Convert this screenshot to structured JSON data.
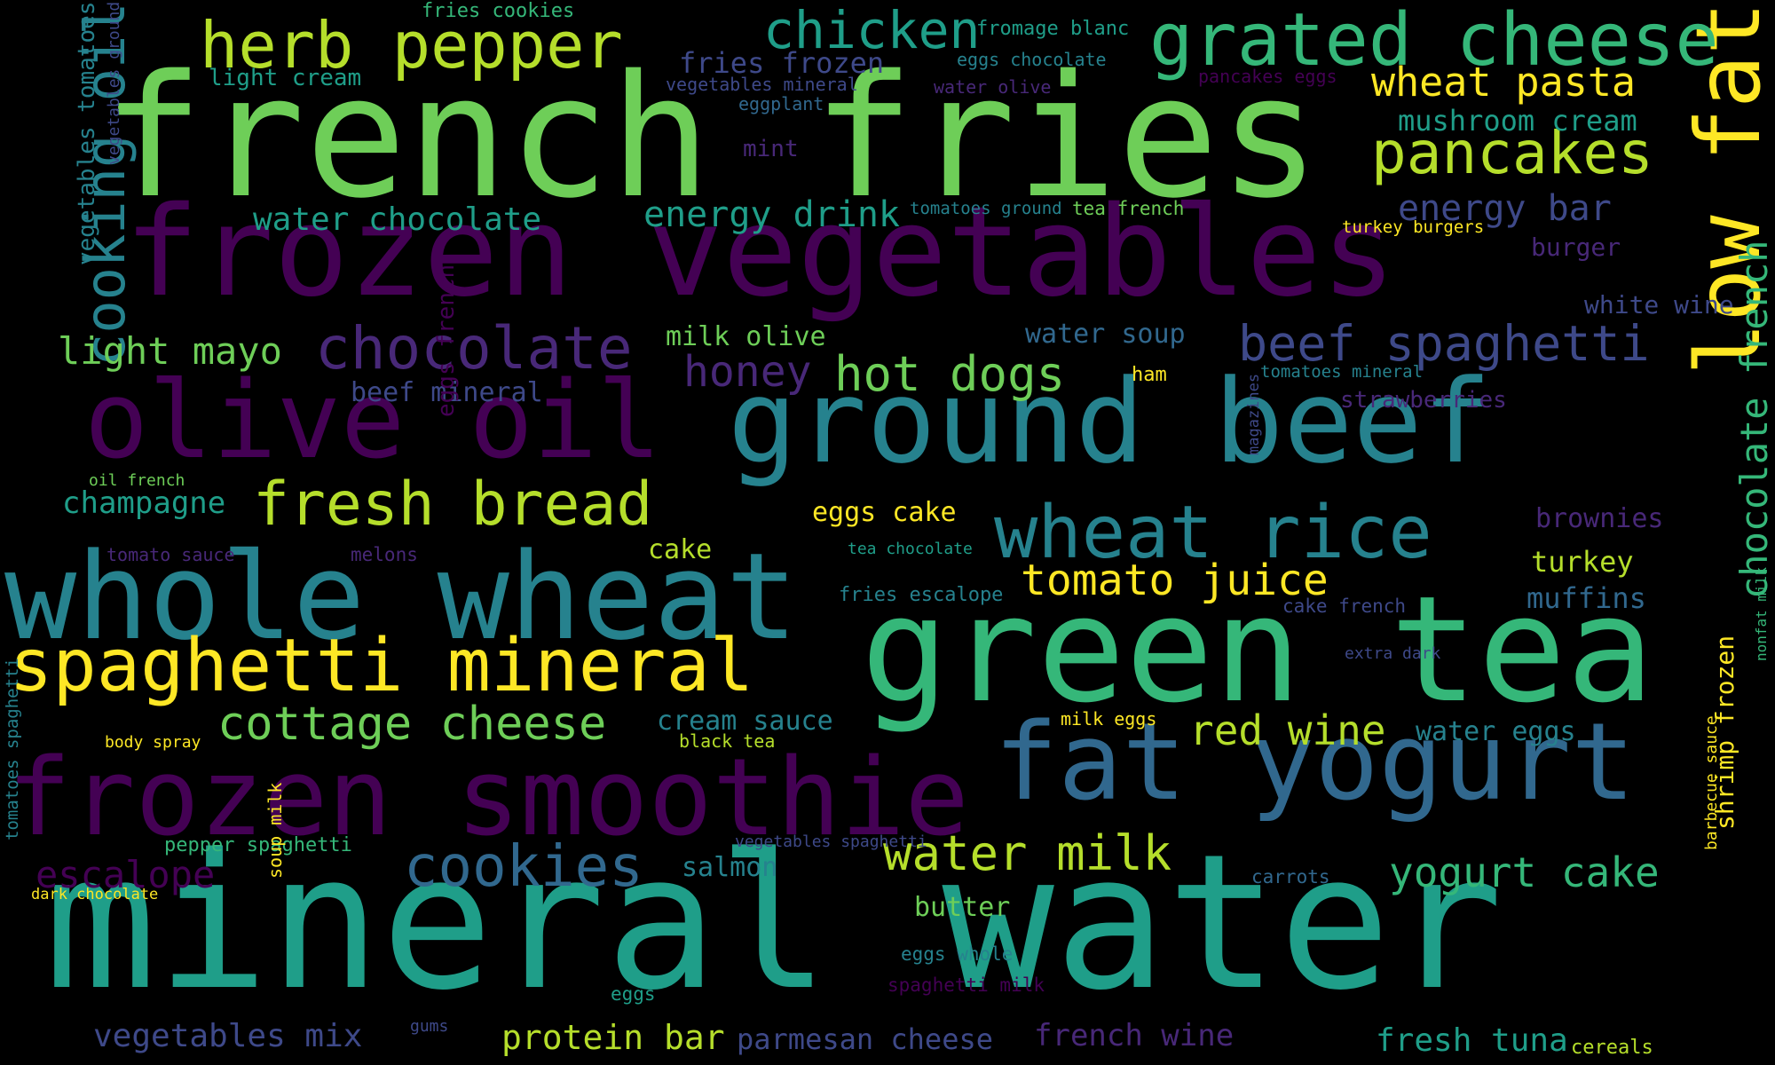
{
  "palette": {
    "background": "#000000",
    "deep_purple": "#440154",
    "indigo": "#482878",
    "violet_blue": "#3e4989",
    "slate_blue": "#31688e",
    "teal": "#26828e",
    "sea_green": "#1f9e89",
    "green_teal": "#35b779",
    "green": "#6ece58",
    "lime": "#b5de2b",
    "yellow": "#fde725"
  },
  "words": [
    {
      "text": "french fries",
      "color": "#6ece58"
    },
    {
      "text": "mineral water",
      "color": "#1f9e89"
    },
    {
      "text": "frozen vegetables",
      "color": "#440154"
    },
    {
      "text": "green tea",
      "color": "#35b779"
    },
    {
      "text": "whole wheat",
      "color": "#26828e"
    },
    {
      "text": "ground beef",
      "color": "#26828e"
    },
    {
      "text": "olive oil",
      "color": "#440154"
    },
    {
      "text": "frozen smoothie",
      "color": "#440154"
    },
    {
      "text": "fat yogurt",
      "color": "#31688e"
    },
    {
      "text": "low fat",
      "color": "#fde725"
    },
    {
      "text": "spaghetti mineral",
      "color": "#fde725"
    },
    {
      "text": "grated cheese",
      "color": "#35b779"
    },
    {
      "text": "wheat rice",
      "color": "#26828e"
    },
    {
      "text": "herb pepper",
      "color": "#b5de2b"
    },
    {
      "text": "pancakes",
      "color": "#b5de2b"
    },
    {
      "text": "cooking oil",
      "color": "#26828e"
    },
    {
      "text": "chocolate",
      "color": "#482878"
    },
    {
      "text": "fresh bread",
      "color": "#b5de2b"
    },
    {
      "text": "beef spaghetti",
      "color": "#3e4989"
    },
    {
      "text": "chicken",
      "color": "#1f9e89"
    },
    {
      "text": "hot dogs",
      "color": "#6ece58"
    },
    {
      "text": "cookies",
      "color": "#31688e"
    },
    {
      "text": "water milk",
      "color": "#b5de2b"
    },
    {
      "text": "tomato juice",
      "color": "#fde725"
    },
    {
      "text": "cottage cheese",
      "color": "#6ece58"
    },
    {
      "text": "chocolate french",
      "color": "#35b779"
    },
    {
      "text": "wheat pasta",
      "color": "#fde725"
    },
    {
      "text": "honey",
      "color": "#482878"
    },
    {
      "text": "yogurt cake",
      "color": "#35b779"
    },
    {
      "text": "red wine",
      "color": "#b5de2b"
    },
    {
      "text": "light mayo",
      "color": "#6ece58"
    },
    {
      "text": "escalope",
      "color": "#440154"
    },
    {
      "text": "energy drink",
      "color": "#1f9e89"
    },
    {
      "text": "water chocolate",
      "color": "#1f9e89"
    },
    {
      "text": "energy bar",
      "color": "#3e4989"
    },
    {
      "text": "protein bar",
      "color": "#b5de2b"
    },
    {
      "text": "vegetables mix",
      "color": "#3e4989"
    },
    {
      "text": "parmesan cheese",
      "color": "#3e4989"
    },
    {
      "text": "french wine",
      "color": "#482878"
    },
    {
      "text": "fresh tuna",
      "color": "#1f9e89"
    },
    {
      "text": "mushroom cream",
      "color": "#1f9e89"
    },
    {
      "text": "champagne",
      "color": "#1f9e89"
    },
    {
      "text": "fries frozen",
      "color": "#3e4989"
    },
    {
      "text": "shrimp frozen",
      "color": "#fde725"
    },
    {
      "text": "water soup",
      "color": "#31688e"
    },
    {
      "text": "milk olive",
      "color": "#6ece58"
    },
    {
      "text": "beef mineral",
      "color": "#3e4989"
    },
    {
      "text": "eggs cake",
      "color": "#fde725"
    },
    {
      "text": "cream sauce",
      "color": "#26828e"
    },
    {
      "text": "turkey",
      "color": "#b5de2b"
    },
    {
      "text": "muffins",
      "color": "#31688e"
    },
    {
      "text": "brownies",
      "color": "#482878"
    },
    {
      "text": "water eggs",
      "color": "#26828e"
    },
    {
      "text": "butter",
      "color": "#6ece58"
    },
    {
      "text": "salmon",
      "color": "#26828e"
    },
    {
      "text": "cake",
      "color": "#b5de2b"
    },
    {
      "text": "white wine",
      "color": "#3e4989"
    },
    {
      "text": "strawberries",
      "color": "#482878"
    },
    {
      "text": "light cream",
      "color": "#1f9e89"
    },
    {
      "text": "burger",
      "color": "#482878"
    },
    {
      "text": "mint",
      "color": "#482878"
    },
    {
      "text": "vegetables tomatoes",
      "color": "#26828e"
    },
    {
      "text": "eggs french",
      "color": "#440154"
    },
    {
      "text": "pepper spaghetti",
      "color": "#35b779"
    },
    {
      "text": "fromage blanc",
      "color": "#1f9e89"
    },
    {
      "text": "fries cookies",
      "color": "#35b779"
    },
    {
      "text": "eggs chocolate",
      "color": "#26828e"
    },
    {
      "text": "vegetables mineral",
      "color": "#3e4989"
    },
    {
      "text": "water olive",
      "color": "#482878"
    },
    {
      "text": "eggplant",
      "color": "#31688e"
    },
    {
      "text": "pancakes eggs",
      "color": "#440154"
    },
    {
      "text": "tomatoes ground",
      "color": "#26828e"
    },
    {
      "text": "tea french",
      "color": "#6ece58"
    },
    {
      "text": "turkey burgers",
      "color": "#fde725"
    },
    {
      "text": "ham",
      "color": "#fde725"
    },
    {
      "text": "tomatoes mineral",
      "color": "#26828e"
    },
    {
      "text": "magazines",
      "color": "#3e4989"
    },
    {
      "text": "oil french",
      "color": "#6ece58"
    },
    {
      "text": "tomato sauce",
      "color": "#482878"
    },
    {
      "text": "melons",
      "color": "#482878"
    },
    {
      "text": "tea chocolate",
      "color": "#1f9e89"
    },
    {
      "text": "fries escalope",
      "color": "#26828e"
    },
    {
      "text": "cake french",
      "color": "#3e4989"
    },
    {
      "text": "extra dark",
      "color": "#3e4989"
    },
    {
      "text": "nonfat milk",
      "color": "#35b779"
    },
    {
      "text": "body spray",
      "color": "#fde725"
    },
    {
      "text": "black tea",
      "color": "#b5de2b"
    },
    {
      "text": "milk eggs",
      "color": "#fde725"
    },
    {
      "text": "vegetables spaghetti",
      "color": "#3e4989"
    },
    {
      "text": "carrots",
      "color": "#31688e"
    },
    {
      "text": "barbecue sauce",
      "color": "#fde725"
    },
    {
      "text": "dark chocolate",
      "color": "#fde725"
    },
    {
      "text": "soup milk",
      "color": "#fde725"
    },
    {
      "text": "tomatoes spaghetti",
      "color": "#26828e"
    },
    {
      "text": "eggs whole",
      "color": "#26828e"
    },
    {
      "text": "spaghetti milk",
      "color": "#440154"
    },
    {
      "text": "eggs",
      "color": "#1f9e89"
    },
    {
      "text": "gums",
      "color": "#3e4989"
    },
    {
      "text": "cereals",
      "color": "#b5de2b"
    },
    {
      "text": "vegetables ground",
      "color": "#3e4989"
    }
  ]
}
